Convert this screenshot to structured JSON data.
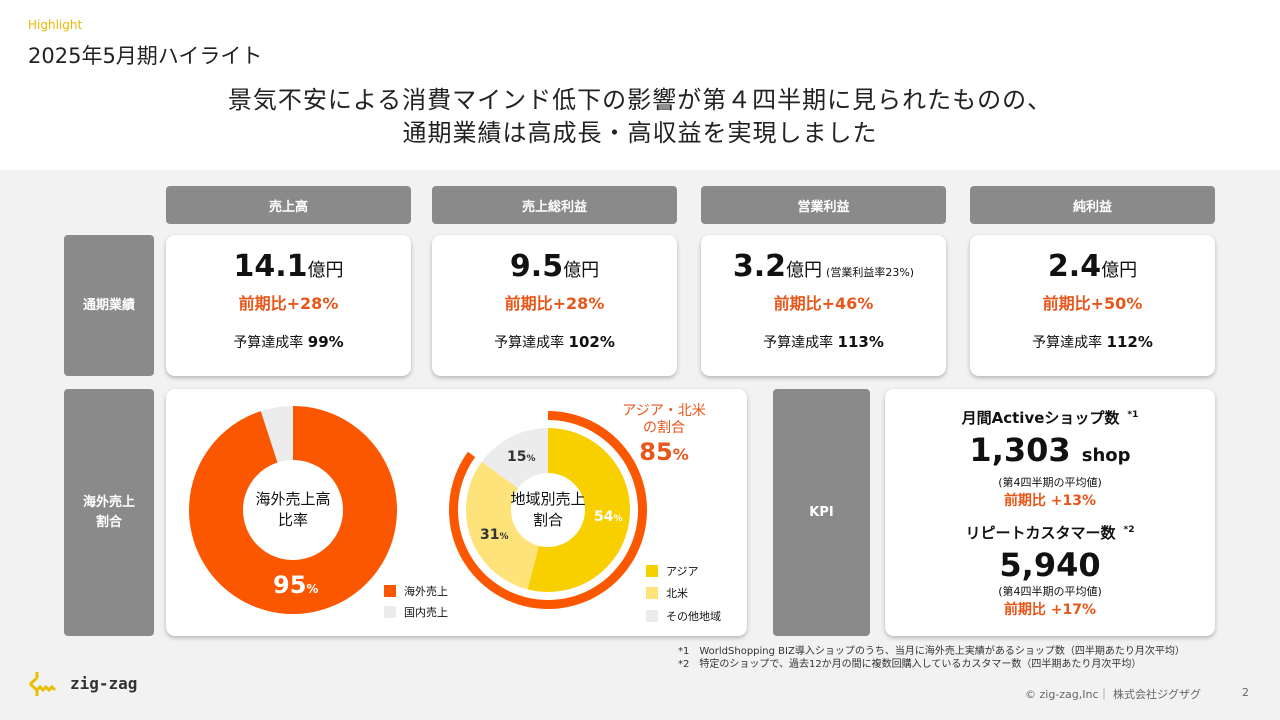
{
  "header": {
    "kicker": "Highlight",
    "title": "2025年5月期ハイライト",
    "headline_1": "景気不安による消費マインド低下の影響が第４四半期に見られたものの、",
    "headline_2": "通期業績は高成長・高収益を実現しました"
  },
  "columns": [
    "売上高",
    "売上総利益",
    "営業利益",
    "純利益"
  ],
  "row_labels": {
    "annual": "通期業績",
    "overseas_1": "海外売上",
    "overseas_2": "割合",
    "kpi": "KPI"
  },
  "metrics": [
    {
      "value": "14.1",
      "unit": "億円",
      "note": "",
      "yoy": "前期比+28%",
      "budget_label": "予算達成率",
      "budget": "99%"
    },
    {
      "value": "9.5",
      "unit": "億円",
      "note": "",
      "yoy": "前期比+28%",
      "budget_label": "予算達成率",
      "budget": "102%"
    },
    {
      "value": "3.2",
      "unit": "億円",
      "note": "(営業利益率23%)",
      "yoy": "前期比+46%",
      "budget_label": "予算達成率",
      "budget": "113%"
    },
    {
      "value": "2.4",
      "unit": "億円",
      "note": "",
      "yoy": "前期比+50%",
      "budget_label": "予算達成率",
      "budget": "112%"
    }
  ],
  "overseas_ratio": {
    "center_1": "海外売上高",
    "center_2": "比率",
    "value_label": "95",
    "pct": "%",
    "slices": [
      {
        "name": "海外売上",
        "value": 95,
        "color": "#fb5700"
      },
      {
        "name": "国内売上",
        "value": 5,
        "color": "#ececec"
      }
    ]
  },
  "regional": {
    "center_1": "地域別売上",
    "center_2": "割合",
    "slices": [
      {
        "name": "アジア",
        "value": 54,
        "label": "54",
        "color": "#f8d000"
      },
      {
        "name": "北米",
        "value": 31,
        "label": "31",
        "color": "#fde37a"
      },
      {
        "name": "その他地域",
        "value": 15,
        "label": "15",
        "color": "#ececec"
      }
    ],
    "pct": "%",
    "outer_title_1": "アジア・北米",
    "outer_title_2": "の割合",
    "outer_value": "85",
    "outer_fraction": 85,
    "outer_color": "#fb5700"
  },
  "kpi": {
    "shops_title": "月間Activeショップ数",
    "shops_mark": "*1",
    "shops_value": "1,303",
    "shops_unit": "shop",
    "shops_sub": "(第4四半期の平均値)",
    "shops_yoy": "前期比 +13%",
    "rep_title": "リピートカスタマー数",
    "rep_mark": "*2",
    "rep_value": "5,940",
    "rep_sub": "(第4四半期の平均値)",
    "rep_yoy": "前期比 +17%"
  },
  "footnotes": [
    "*1　WorldShopping BIZ導入ショップのうち、当月に海外売上実績があるショップ数（四半期あたり月次平均）",
    "*2　特定のショップで、過去12か月の間に複数回購入しているカスタマー数（四半期あたり月次平均）"
  ],
  "footer": {
    "logo": "zig-zag",
    "copyright": "© zig-zag,Inc｜ 株式会社ジグザグ",
    "page": "2"
  },
  "colors": {
    "accent": "#fb5700",
    "kicker": "#e8b800",
    "label_gray": "#8a8a8a"
  }
}
